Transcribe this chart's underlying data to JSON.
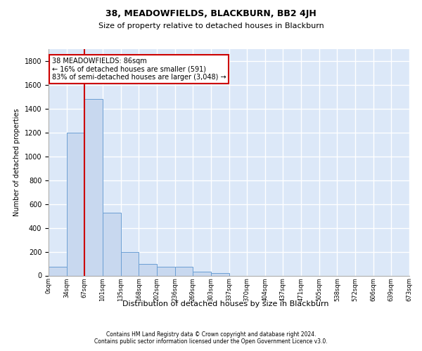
{
  "title1": "38, MEADOWFIELDS, BLACKBURN, BB2 4JH",
  "title2": "Size of property relative to detached houses in Blackburn",
  "xlabel": "Distribution of detached houses by size in Blackburn",
  "ylabel": "Number of detached properties",
  "footer1": "Contains HM Land Registry data © Crown copyright and database right 2024.",
  "footer2": "Contains public sector information licensed under the Open Government Licence v3.0.",
  "bin_labels": [
    "0sqm",
    "34sqm",
    "67sqm",
    "101sqm",
    "135sqm",
    "168sqm",
    "202sqm",
    "236sqm",
    "269sqm",
    "303sqm",
    "337sqm",
    "370sqm",
    "404sqm",
    "437sqm",
    "471sqm",
    "505sqm",
    "538sqm",
    "572sqm",
    "606sqm",
    "639sqm",
    "673sqm"
  ],
  "bar_values": [
    75,
    1200,
    1480,
    530,
    200,
    95,
    75,
    75,
    30,
    20,
    0,
    0,
    0,
    0,
    0,
    0,
    0,
    0,
    0,
    0
  ],
  "bar_color": "#c8d8ef",
  "bar_edge_color": "#6b9fd4",
  "background_color": "#dce8f8",
  "grid_color": "#ffffff",
  "vline_x": 2.0,
  "vline_color": "#cc0000",
  "annotation_line1": "38 MEADOWFIELDS: 86sqm",
  "annotation_line2": "← 16% of detached houses are smaller (591)",
  "annotation_line3": "83% of semi-detached houses are larger (3,048) →",
  "annotation_box_edgecolor": "#cc0000",
  "ylim": [
    0,
    1900
  ],
  "yticks": [
    0,
    200,
    400,
    600,
    800,
    1000,
    1200,
    1400,
    1600,
    1800
  ],
  "title1_fontsize": 9,
  "title2_fontsize": 8,
  "ylabel_fontsize": 7,
  "xlabel_fontsize": 8,
  "ytick_fontsize": 7,
  "xtick_fontsize": 6
}
